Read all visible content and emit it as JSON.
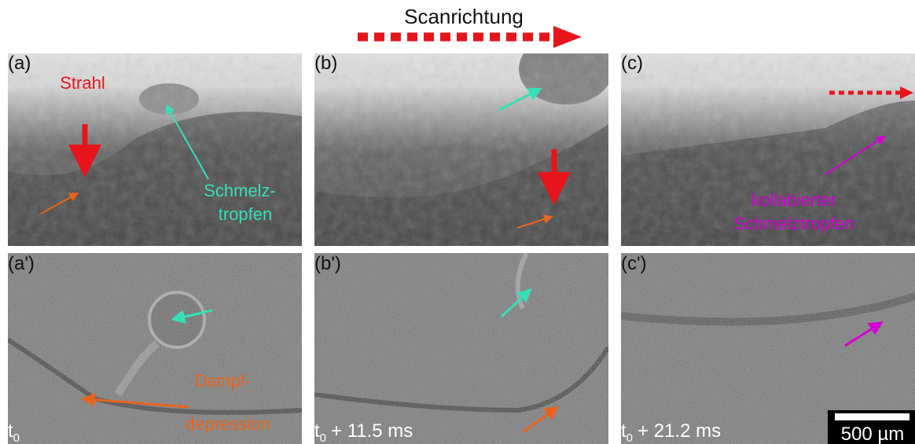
{
  "scan_direction": "Scanrichtung",
  "top_panels": [
    {
      "label": "(a)"
    },
    {
      "label": "(b)"
    },
    {
      "label": "(c)"
    }
  ],
  "bottom_panels": [
    {
      "label": "(a')",
      "time": {
        "symbol": "t",
        "subscript": "0"
      }
    },
    {
      "label": "(b')",
      "time": {
        "symbol": "t",
        "subscript": "0",
        "suffix": "+ 11.5 ms"
      }
    },
    {
      "label": "(c')",
      "time": {
        "symbol": "t",
        "subscript": "0",
        "suffix": "+ 21.2 ms"
      }
    }
  ],
  "annotations": {
    "beam": "Strahl",
    "melt_droplet": [
      "Schmelz-",
      "tropfen"
    ],
    "collapsed_droplet": [
      "kollabierter",
      "Schmelztropfen"
    ],
    "vapor_depression": [
      "Dampf-",
      "depression"
    ]
  },
  "scale_bar": "500 µm"
}
